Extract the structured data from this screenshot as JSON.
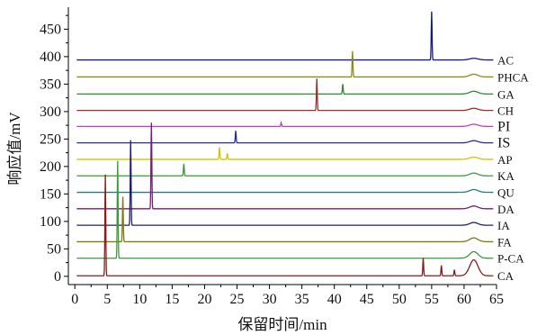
{
  "chart_data": {
    "type": "line",
    "xlabel": "保留时间/min",
    "ylabel": "响应值/mV",
    "xlim": [
      -1,
      65
    ],
    "ylim": [
      -15,
      490
    ],
    "xticks": [
      0,
      5,
      10,
      15,
      20,
      25,
      30,
      35,
      40,
      45,
      50,
      55,
      60,
      65
    ],
    "yticks": [
      0,
      50,
      100,
      150,
      200,
      250,
      300,
      350,
      400,
      450
    ],
    "series": [
      {
        "name": "AC",
        "color": "#1a1a7a",
        "baseline": 394,
        "peaks": [
          [
            55.0,
            482
          ],
          [
            61.5,
            397
          ]
        ]
      },
      {
        "name": "PHCA",
        "color": "#8a8a1a",
        "baseline": 363,
        "peaks": [
          [
            42.8,
            410
          ],
          [
            61.5,
            368
          ]
        ]
      },
      {
        "name": "GA",
        "color": "#2e8b2e",
        "baseline": 332,
        "peaks": [
          [
            41.3,
            350
          ],
          [
            61.5,
            337
          ]
        ]
      },
      {
        "name": "CH",
        "color": "#a52a2a",
        "baseline": 302,
        "peaks": [
          [
            37.3,
            360
          ],
          [
            61.5,
            306
          ]
        ]
      },
      {
        "name": "PI",
        "color": "#c040c0",
        "baseline": 273,
        "peaks": [
          [
            31.8,
            280
          ],
          [
            61.5,
            277
          ]
        ]
      },
      {
        "name": "IS",
        "color": "#2a2aa0",
        "baseline": 243,
        "peaks": [
          [
            24.8,
            265
          ],
          [
            61.5,
            247
          ]
        ]
      },
      {
        "name": "AP",
        "color": "#c8c800",
        "baseline": 213,
        "peaks": [
          [
            22.3,
            235
          ],
          [
            23.5,
            224
          ],
          [
            61.5,
            217
          ]
        ]
      },
      {
        "name": "KA",
        "color": "#3c9b3c",
        "baseline": 183,
        "peaks": [
          [
            16.8,
            205
          ],
          [
            61.5,
            188
          ]
        ]
      },
      {
        "name": "QU",
        "color": "#2a7a7a",
        "baseline": 153,
        "peaks": [
          [
            61.5,
            158
          ]
        ]
      },
      {
        "name": "DA",
        "color": "#7a1a7a",
        "baseline": 123,
        "peaks": [
          [
            11.8,
            280
          ],
          [
            61.5,
            128
          ]
        ]
      },
      {
        "name": "IA",
        "color": "#20206a",
        "baseline": 93,
        "peaks": [
          [
            8.6,
            248
          ],
          [
            61.5,
            98
          ]
        ]
      },
      {
        "name": "FA",
        "color": "#7a7a10",
        "baseline": 63,
        "peaks": [
          [
            7.4,
            145
          ],
          [
            61.5,
            70
          ]
        ]
      },
      {
        "name": "P-CA",
        "color": "#3a9a3a",
        "baseline": 33,
        "peaks": [
          [
            6.6,
            210
          ],
          [
            61.5,
            45
          ]
        ]
      },
      {
        "name": "CA",
        "color": "#8b1a1a",
        "baseline": 1,
        "peaks": [
          [
            4.7,
            185
          ],
          [
            53.7,
            33
          ],
          [
            56.5,
            20
          ],
          [
            58.5,
            12
          ],
          [
            61.5,
            30
          ]
        ]
      }
    ]
  }
}
